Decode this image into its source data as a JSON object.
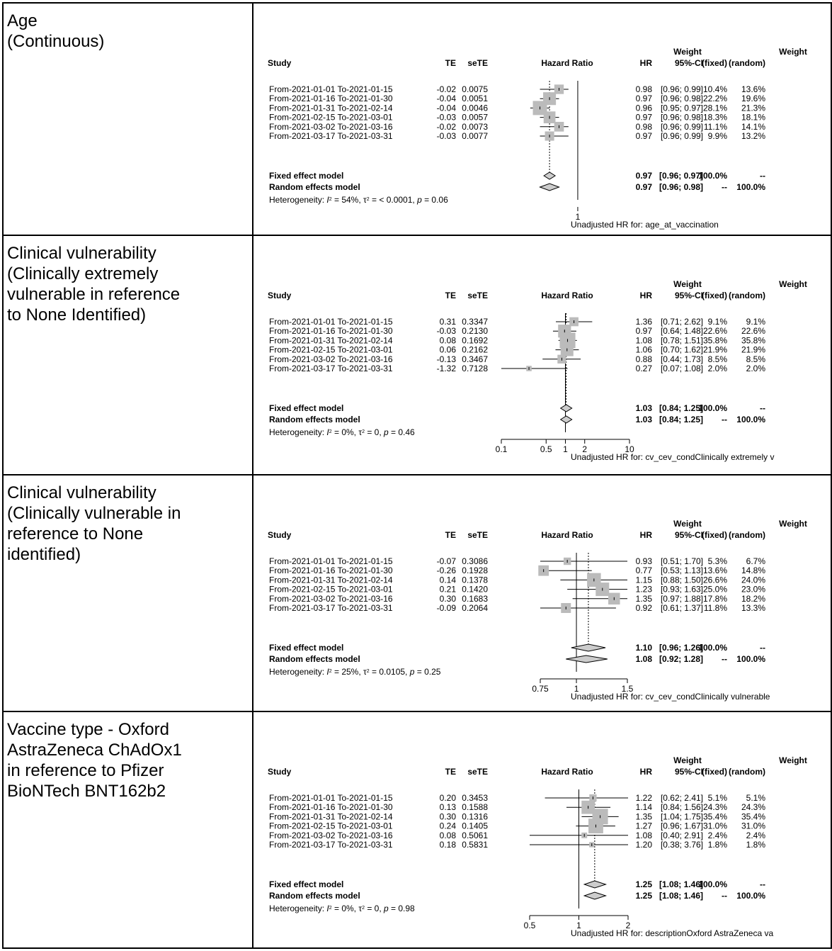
{
  "columns": {
    "study": "Study",
    "te": "TE",
    "sete": "seTE",
    "hazard_ratio": "Hazard Ratio",
    "hr": "HR",
    "ci": "95%-CI",
    "weight": "Weight",
    "fixed": "(fixed)",
    "random": "(random)",
    "fixed_model": "Fixed effect model",
    "random_model": "Random effects model",
    "heterogeneity_prefix": "Heterogeneity: "
  },
  "chart_data": [
    {
      "type": "forest",
      "row_label_lines": [
        "Age",
        "(Continuous)"
      ],
      "xlabel": "Unadjusted HR for: age_at_vaccination",
      "xscale": "log",
      "xlim": [
        0.93,
        1.055
      ],
      "ticks": [
        {
          "value": 1,
          "label": "1"
        }
      ],
      "studies": [
        {
          "label": "From-2021-01-01 To-2021-01-15",
          "te": "-0.02",
          "sete": "0.0075",
          "hr": 0.98,
          "lo": 0.96,
          "hi": 0.99,
          "hr_text": "0.98",
          "ci_text": "[0.96; 0.99]",
          "wf": "10.4%",
          "wr": "13.6%",
          "wf_num": 10.4
        },
        {
          "label": "From-2021-01-16 To-2021-01-30",
          "te": "-0.04",
          "sete": "0.0051",
          "hr": 0.97,
          "lo": 0.96,
          "hi": 0.98,
          "hr_text": "0.97",
          "ci_text": "[0.96; 0.98]",
          "wf": "22.2%",
          "wr": "19.6%",
          "wf_num": 22.2
        },
        {
          "label": "From-2021-01-31 To-2021-02-14",
          "te": "-0.04",
          "sete": "0.0046",
          "hr": 0.96,
          "lo": 0.95,
          "hi": 0.97,
          "hr_text": "0.96",
          "ci_text": "[0.95; 0.97]",
          "wf": "28.1%",
          "wr": "21.3%",
          "wf_num": 28.1
        },
        {
          "label": "From-2021-02-15 To-2021-03-01",
          "te": "-0.03",
          "sete": "0.0057",
          "hr": 0.97,
          "lo": 0.96,
          "hi": 0.98,
          "hr_text": "0.97",
          "ci_text": "[0.96; 0.98]",
          "wf": "18.3%",
          "wr": "18.1%",
          "wf_num": 18.3
        },
        {
          "label": "From-2021-03-02 To-2021-03-16",
          "te": "-0.02",
          "sete": "0.0073",
          "hr": 0.98,
          "lo": 0.96,
          "hi": 0.99,
          "hr_text": "0.98",
          "ci_text": "[0.96; 0.99]",
          "wf": "11.1%",
          "wr": "14.1%",
          "wf_num": 11.1
        },
        {
          "label": "From-2021-03-17 To-2021-03-31",
          "te": "-0.03",
          "sete": "0.0077",
          "hr": 0.97,
          "lo": 0.96,
          "hi": 0.99,
          "hr_text": "0.97",
          "ci_text": "[0.96; 0.99]",
          "wf": "9.9%",
          "wr": "13.2%",
          "wf_num": 9.9
        }
      ],
      "fixed": {
        "hr": 0.97,
        "lo": 0.96,
        "hi": 0.97,
        "hr_text": "0.97",
        "ci_text": "[0.96; 0.97]",
        "wf": "100.0%",
        "wr": "--"
      },
      "random": {
        "hr": 0.97,
        "lo": 0.96,
        "hi": 0.98,
        "hr_text": "0.97",
        "ci_text": "[0.96; 0.98]",
        "wf": "--",
        "wr": "100.0%"
      },
      "heterogeneity": {
        "i2": "54%",
        "tau2": "< 0.0001",
        "p": "0.06"
      }
    },
    {
      "type": "forest",
      "row_label_lines": [
        "Clinical vulnerability",
        "(Clinically extremely",
        "vulnerable in reference",
        "to None Identified)"
      ],
      "xlabel": "Unadjusted HR for: cv_cev_condClinically extremely v",
      "xscale": "log",
      "xlim": [
        0.1,
        10
      ],
      "ticks": [
        {
          "value": 0.1,
          "label": "0.1"
        },
        {
          "value": 0.5,
          "label": "0.5"
        },
        {
          "value": 1,
          "label": "1"
        },
        {
          "value": 2,
          "label": "2"
        },
        {
          "value": 10,
          "label": "10"
        }
      ],
      "studies": [
        {
          "label": "From-2021-01-01 To-2021-01-15",
          "te": "0.31",
          "sete": "0.3347",
          "hr": 1.36,
          "lo": 0.71,
          "hi": 2.62,
          "hr_text": "1.36",
          "ci_text": "[0.71; 2.62]",
          "wf": "9.1%",
          "wr": "9.1%",
          "wf_num": 9.1
        },
        {
          "label": "From-2021-01-16 To-2021-01-30",
          "te": "-0.03",
          "sete": "0.2130",
          "hr": 0.97,
          "lo": 0.64,
          "hi": 1.48,
          "hr_text": "0.97",
          "ci_text": "[0.64; 1.48]",
          "wf": "22.6%",
          "wr": "22.6%",
          "wf_num": 22.6
        },
        {
          "label": "From-2021-01-31 To-2021-02-14",
          "te": "0.08",
          "sete": "0.1692",
          "hr": 1.08,
          "lo": 0.78,
          "hi": 1.51,
          "hr_text": "1.08",
          "ci_text": "[0.78; 1.51]",
          "wf": "35.8%",
          "wr": "35.8%",
          "wf_num": 35.8
        },
        {
          "label": "From-2021-02-15 To-2021-03-01",
          "te": "0.06",
          "sete": "0.2162",
          "hr": 1.06,
          "lo": 0.7,
          "hi": 1.62,
          "hr_text": "1.06",
          "ci_text": "[0.70; 1.62]",
          "wf": "21.9%",
          "wr": "21.9%",
          "wf_num": 21.9
        },
        {
          "label": "From-2021-03-02 To-2021-03-16",
          "te": "-0.13",
          "sete": "0.3467",
          "hr": 0.88,
          "lo": 0.44,
          "hi": 1.73,
          "hr_text": "0.88",
          "ci_text": "[0.44; 1.73]",
          "wf": "8.5%",
          "wr": "8.5%",
          "wf_num": 8.5
        },
        {
          "label": "From-2021-03-17 To-2021-03-31",
          "te": "-1.32",
          "sete": "0.7128",
          "hr": 0.27,
          "lo": 0.07,
          "hi": 1.08,
          "hr_text": "0.27",
          "ci_text": "[0.07; 1.08]",
          "wf": "2.0%",
          "wr": "2.0%",
          "wf_num": 2.0
        }
      ],
      "fixed": {
        "hr": 1.03,
        "lo": 0.84,
        "hi": 1.25,
        "hr_text": "1.03",
        "ci_text": "[0.84; 1.25]",
        "wf": "100.0%",
        "wr": "--"
      },
      "random": {
        "hr": 1.03,
        "lo": 0.84,
        "hi": 1.25,
        "hr_text": "1.03",
        "ci_text": "[0.84; 1.25]",
        "wf": "--",
        "wr": "100.0%"
      },
      "heterogeneity": {
        "i2": "0%",
        "tau2": "0",
        "p": "0.46"
      }
    },
    {
      "type": "forest",
      "row_label_lines": [
        "Clinical vulnerability",
        "(Clinically vulnerable in",
        "reference to None",
        "identified)"
      ],
      "xlabel": "Unadjusted HR for: cv_cev_condClinically vulnerable",
      "xscale": "log",
      "xlim": [
        0.75,
        1.5
      ],
      "ticks": [
        {
          "value": 0.75,
          "label": "0.75"
        },
        {
          "value": 1,
          "label": "1"
        },
        {
          "value": 1.5,
          "label": "1.5"
        }
      ],
      "studies": [
        {
          "label": "From-2021-01-01 To-2021-01-15",
          "te": "-0.07",
          "sete": "0.3086",
          "hr": 0.93,
          "lo": 0.51,
          "hi": 1.7,
          "hr_text": "0.93",
          "ci_text": "[0.51; 1.70]",
          "wf": "5.3%",
          "wr": "6.7%",
          "wf_num": 5.3
        },
        {
          "label": "From-2021-01-16 To-2021-01-30",
          "te": "-0.26",
          "sete": "0.1928",
          "hr": 0.77,
          "lo": 0.53,
          "hi": 1.13,
          "hr_text": "0.77",
          "ci_text": "[0.53; 1.13]",
          "wf": "13.6%",
          "wr": "14.8%",
          "wf_num": 13.6
        },
        {
          "label": "From-2021-01-31 To-2021-02-14",
          "te": "0.14",
          "sete": "0.1378",
          "hr": 1.15,
          "lo": 0.88,
          "hi": 1.5,
          "hr_text": "1.15",
          "ci_text": "[0.88; 1.50]",
          "wf": "26.6%",
          "wr": "24.0%",
          "wf_num": 26.6
        },
        {
          "label": "From-2021-02-15 To-2021-03-01",
          "te": "0.21",
          "sete": "0.1420",
          "hr": 1.23,
          "lo": 0.93,
          "hi": 1.63,
          "hr_text": "1.23",
          "ci_text": "[0.93; 1.63]",
          "wf": "25.0%",
          "wr": "23.0%",
          "wf_num": 25.0
        },
        {
          "label": "From-2021-03-02 To-2021-03-16",
          "te": "0.30",
          "sete": "0.1683",
          "hr": 1.35,
          "lo": 0.97,
          "hi": 1.88,
          "hr_text": "1.35",
          "ci_text": "[0.97; 1.88]",
          "wf": "17.8%",
          "wr": "18.2%",
          "wf_num": 17.8
        },
        {
          "label": "From-2021-03-17 To-2021-03-31",
          "te": "-0.09",
          "sete": "0.2064",
          "hr": 0.92,
          "lo": 0.61,
          "hi": 1.37,
          "hr_text": "0.92",
          "ci_text": "[0.61; 1.37]",
          "wf": "11.8%",
          "wr": "13.3%",
          "wf_num": 11.8
        }
      ],
      "fixed": {
        "hr": 1.1,
        "lo": 0.96,
        "hi": 1.26,
        "hr_text": "1.10",
        "ci_text": "[0.96; 1.26]",
        "wf": "100.0%",
        "wr": "--"
      },
      "random": {
        "hr": 1.08,
        "lo": 0.92,
        "hi": 1.28,
        "hr_text": "1.08",
        "ci_text": "[0.92; 1.28]",
        "wf": "--",
        "wr": "100.0%"
      },
      "heterogeneity": {
        "i2": "25%",
        "tau2": "0.0105",
        "p": "0.25"
      }
    },
    {
      "type": "forest",
      "row_label_lines": [
        "Vaccine type - Oxford",
        "AstraZeneca ChAdOx1",
        "in reference to Pfizer",
        "BioNTech BNT162b2"
      ],
      "xlabel": "Unadjusted HR for: descriptionOxford AstraZeneca va",
      "xscale": "log",
      "xlim": [
        0.5,
        2
      ],
      "ticks": [
        {
          "value": 0.5,
          "label": "0.5"
        },
        {
          "value": 1,
          "label": "1"
        },
        {
          "value": 2,
          "label": "2"
        }
      ],
      "studies": [
        {
          "label": "From-2021-01-01 To-2021-01-15",
          "te": "0.20",
          "sete": "0.3453",
          "hr": 1.22,
          "lo": 0.62,
          "hi": 2.41,
          "hr_text": "1.22",
          "ci_text": "[0.62; 2.41]",
          "wf": "5.1%",
          "wr": "5.1%",
          "wf_num": 5.1
        },
        {
          "label": "From-2021-01-16 To-2021-01-30",
          "te": "0.13",
          "sete": "0.1588",
          "hr": 1.14,
          "lo": 0.84,
          "hi": 1.56,
          "hr_text": "1.14",
          "ci_text": "[0.84; 1.56]",
          "wf": "24.3%",
          "wr": "24.3%",
          "wf_num": 24.3
        },
        {
          "label": "From-2021-01-31 To-2021-02-14",
          "te": "0.30",
          "sete": "0.1316",
          "hr": 1.35,
          "lo": 1.04,
          "hi": 1.75,
          "hr_text": "1.35",
          "ci_text": "[1.04; 1.75]",
          "wf": "35.4%",
          "wr": "35.4%",
          "wf_num": 35.4
        },
        {
          "label": "From-2021-02-15 To-2021-03-01",
          "te": "0.24",
          "sete": "0.1405",
          "hr": 1.27,
          "lo": 0.96,
          "hi": 1.67,
          "hr_text": "1.27",
          "ci_text": "[0.96; 1.67]",
          "wf": "31.0%",
          "wr": "31.0%",
          "wf_num": 31.0
        },
        {
          "label": "From-2021-03-02 To-2021-03-16",
          "te": "0.08",
          "sete": "0.5061",
          "hr": 1.08,
          "lo": 0.4,
          "hi": 2.91,
          "hr_text": "1.08",
          "ci_text": "[0.40; 2.91]",
          "wf": "2.4%",
          "wr": "2.4%",
          "wf_num": 2.4
        },
        {
          "label": "From-2021-03-17 To-2021-03-31",
          "te": "0.18",
          "sete": "0.5831",
          "hr": 1.2,
          "lo": 0.38,
          "hi": 3.76,
          "hr_text": "1.20",
          "ci_text": "[0.38; 3.76]",
          "wf": "1.8%",
          "wr": "1.8%",
          "wf_num": 1.8
        }
      ],
      "fixed": {
        "hr": 1.25,
        "lo": 1.08,
        "hi": 1.46,
        "hr_text": "1.25",
        "ci_text": "[1.08; 1.46]",
        "wf": "100.0%",
        "wr": "--"
      },
      "random": {
        "hr": 1.25,
        "lo": 1.08,
        "hi": 1.46,
        "hr_text": "1.25",
        "ci_text": "[1.08; 1.46]",
        "wf": "--",
        "wr": "100.0%"
      },
      "heterogeneity": {
        "i2": "0%",
        "tau2": "0",
        "p": "0.98"
      }
    }
  ]
}
